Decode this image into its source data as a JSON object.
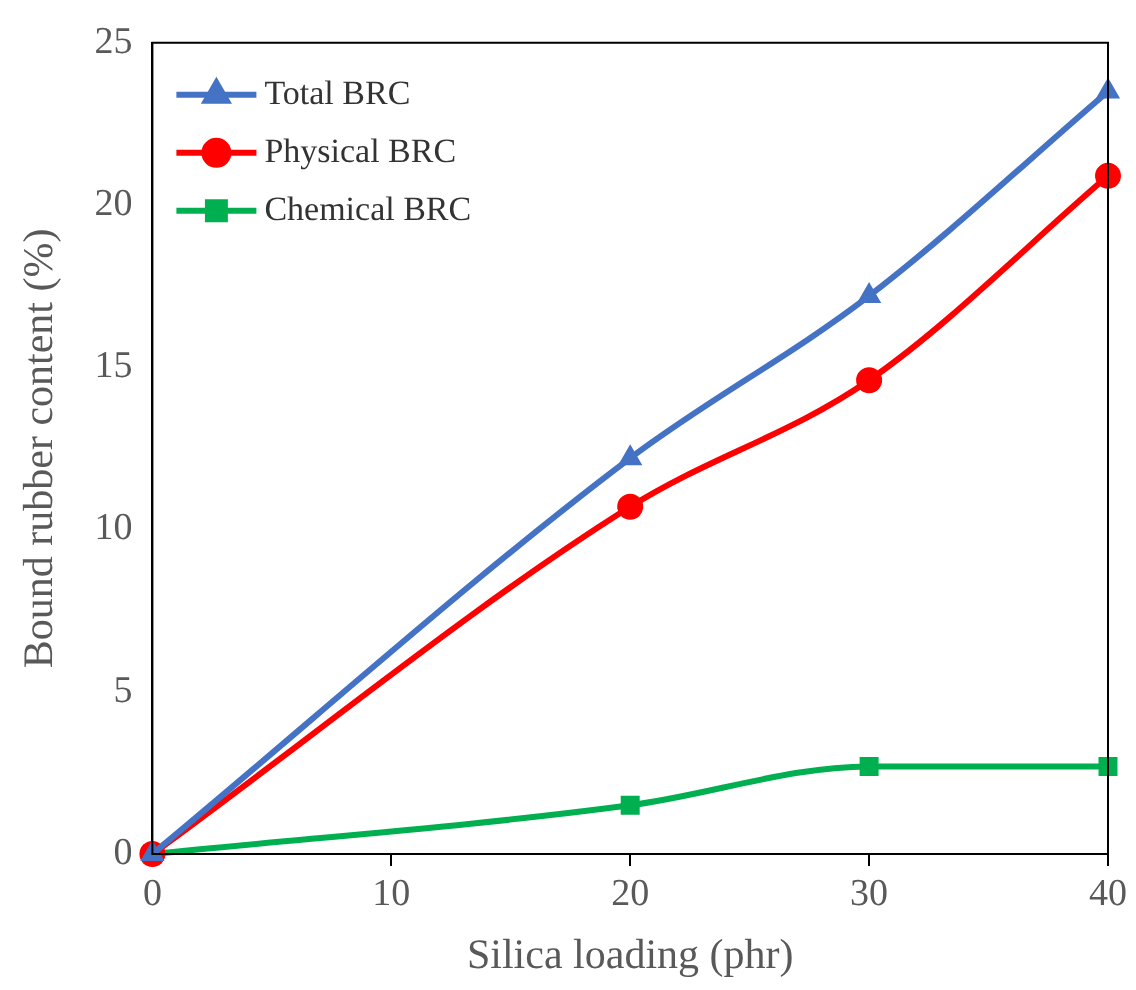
{
  "chart_data": {
    "type": "line",
    "xlabel": "Silica loading (phr)",
    "ylabel": "Bound rubber content (%)",
    "x": [
      0,
      20,
      30,
      40
    ],
    "series": [
      {
        "name": "Total BRC",
        "color": "#4472c4",
        "marker": "triangle",
        "values": [
          0,
          12.2,
          17.2,
          23.5
        ]
      },
      {
        "name": "Physical BRC",
        "color": "#ff0000",
        "marker": "circle",
        "values": [
          0,
          10.7,
          14.6,
          20.9
        ]
      },
      {
        "name": "Chemical BRC",
        "color": "#00b050",
        "marker": "square",
        "values": [
          0,
          1.5,
          2.7,
          2.7
        ]
      }
    ],
    "xlim": [
      0,
      40
    ],
    "xticks": [
      0,
      10,
      20,
      30,
      40
    ],
    "ylim": [
      0,
      25
    ],
    "yticks": [
      0,
      5,
      10,
      15,
      20,
      25
    ],
    "legend": "top left"
  }
}
